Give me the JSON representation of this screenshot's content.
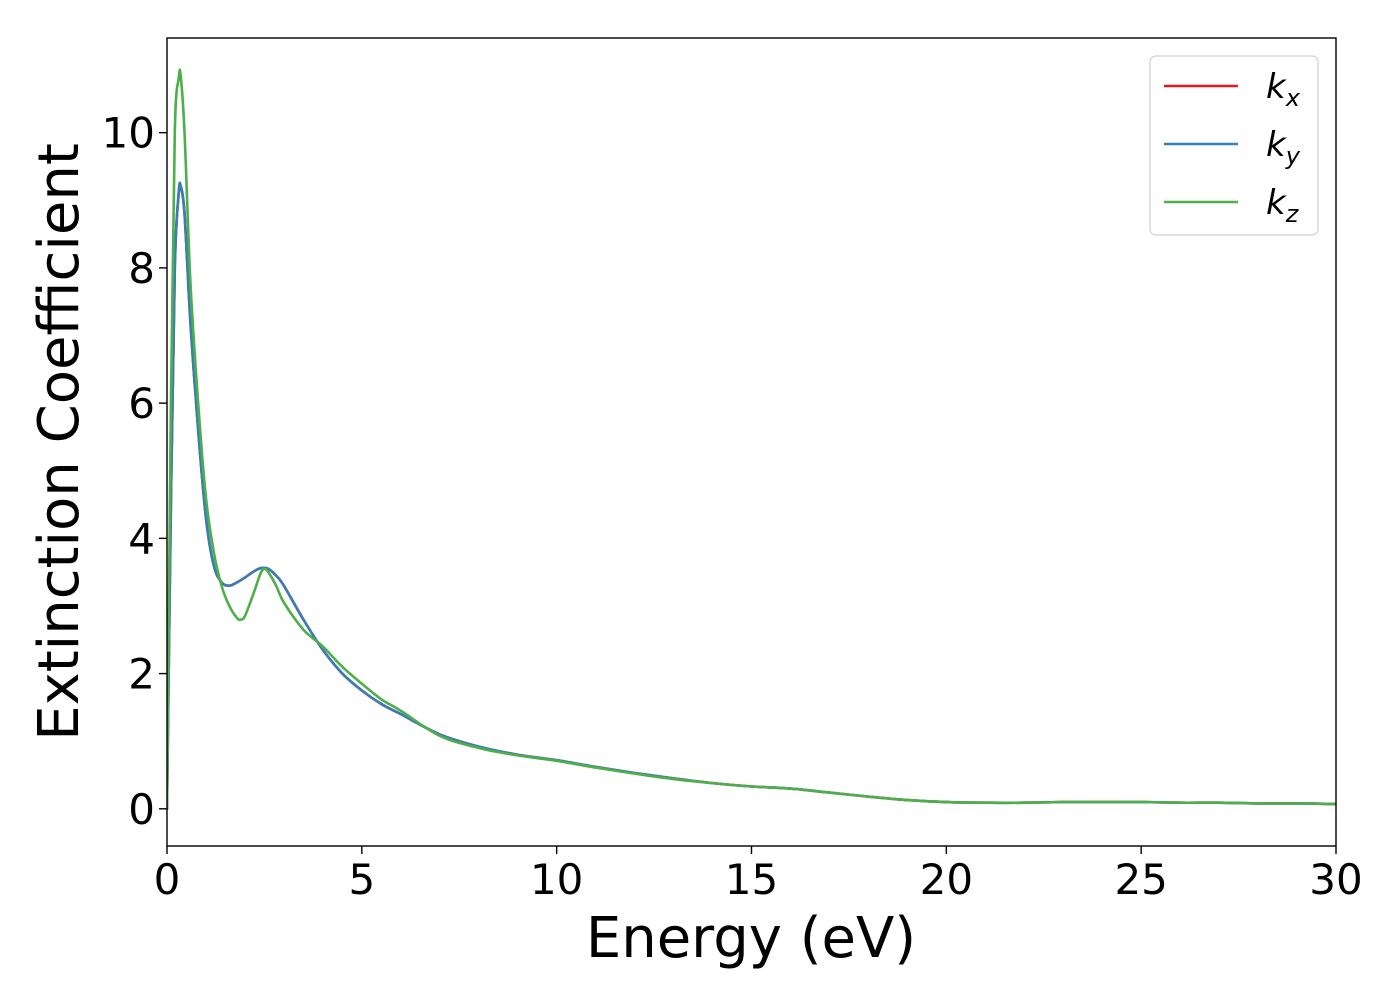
{
  "chart_data": {
    "type": "line",
    "title": "",
    "xlabel": "Energy (eV)",
    "ylabel": "Extinction Coefficient",
    "xlim": [
      0,
      30
    ],
    "ylim": [
      -0.55,
      11.4
    ],
    "xticks": [
      0,
      5,
      10,
      15,
      20,
      25,
      30
    ],
    "yticks": [
      0,
      2,
      4,
      6,
      8,
      10
    ],
    "grid": false,
    "legend_position": "top-right",
    "series": [
      {
        "name": "k_x",
        "legend_base": "k",
        "legend_sub": "x",
        "color": "#e41a1c",
        "x": [
          0,
          0.1,
          0.2,
          0.3,
          0.35,
          0.45,
          0.6,
          0.8,
          1.0,
          1.2,
          1.4,
          1.6,
          1.8,
          2.0,
          2.2,
          2.4,
          2.6,
          2.8,
          3.0,
          3.5,
          4.0,
          4.5,
          5.0,
          5.5,
          6.0,
          7.0,
          8.0,
          9.0,
          10.0,
          11.0,
          12.0,
          13.0,
          14.0,
          15.0,
          16.0,
          17.0,
          18.0,
          19.0,
          20.0,
          21.0,
          22.0,
          23.0,
          24.0,
          25.0,
          26.0,
          27.0,
          28.0,
          29.0,
          30.0
        ],
        "y": [
          0,
          4.5,
          8.0,
          9.1,
          9.2,
          8.8,
          7.2,
          5.6,
          4.3,
          3.6,
          3.35,
          3.3,
          3.35,
          3.42,
          3.5,
          3.56,
          3.55,
          3.45,
          3.3,
          2.8,
          2.35,
          2.0,
          1.75,
          1.55,
          1.4,
          1.1,
          0.92,
          0.8,
          0.72,
          0.62,
          0.53,
          0.45,
          0.38,
          0.33,
          0.3,
          0.24,
          0.18,
          0.13,
          0.1,
          0.09,
          0.09,
          0.1,
          0.1,
          0.1,
          0.09,
          0.09,
          0.08,
          0.08,
          0.07
        ]
      },
      {
        "name": "k_y",
        "legend_base": "k",
        "legend_sub": "y",
        "color": "#377eb8",
        "x": [
          0,
          0.1,
          0.2,
          0.3,
          0.35,
          0.45,
          0.6,
          0.8,
          1.0,
          1.2,
          1.4,
          1.6,
          1.8,
          2.0,
          2.2,
          2.4,
          2.6,
          2.8,
          3.0,
          3.5,
          4.0,
          4.5,
          5.0,
          5.5,
          6.0,
          7.0,
          8.0,
          9.0,
          10.0,
          11.0,
          12.0,
          13.0,
          14.0,
          15.0,
          16.0,
          17.0,
          18.0,
          19.0,
          20.0,
          21.0,
          22.0,
          23.0,
          24.0,
          25.0,
          26.0,
          27.0,
          28.0,
          29.0,
          30.0
        ],
        "y": [
          0,
          4.5,
          8.0,
          9.1,
          9.22,
          8.8,
          7.2,
          5.6,
          4.3,
          3.6,
          3.35,
          3.3,
          3.35,
          3.42,
          3.5,
          3.56,
          3.55,
          3.45,
          3.3,
          2.8,
          2.35,
          2.0,
          1.75,
          1.55,
          1.4,
          1.1,
          0.92,
          0.8,
          0.72,
          0.62,
          0.53,
          0.45,
          0.38,
          0.33,
          0.3,
          0.24,
          0.18,
          0.13,
          0.1,
          0.09,
          0.09,
          0.1,
          0.1,
          0.1,
          0.09,
          0.09,
          0.08,
          0.08,
          0.07
        ]
      },
      {
        "name": "k_z",
        "legend_base": "k",
        "legend_sub": "z",
        "color": "#4daf4a",
        "x": [
          0,
          0.1,
          0.2,
          0.3,
          0.35,
          0.45,
          0.6,
          0.8,
          1.0,
          1.2,
          1.4,
          1.6,
          1.8,
          1.9,
          2.0,
          2.2,
          2.4,
          2.5,
          2.6,
          2.8,
          3.0,
          3.5,
          4.0,
          4.5,
          5.0,
          5.5,
          6.0,
          7.0,
          8.0,
          9.0,
          10.0,
          11.0,
          12.0,
          13.0,
          14.0,
          15.0,
          16.0,
          17.0,
          18.0,
          19.0,
          20.0,
          21.0,
          22.0,
          23.0,
          24.0,
          25.0,
          26.0,
          27.0,
          28.0,
          29.0,
          30.0
        ],
        "y": [
          0,
          6.0,
          10.0,
          10.8,
          10.85,
          10.0,
          7.8,
          6.0,
          4.6,
          3.8,
          3.3,
          3.0,
          2.82,
          2.8,
          2.85,
          3.15,
          3.48,
          3.55,
          3.5,
          3.3,
          3.05,
          2.65,
          2.4,
          2.1,
          1.85,
          1.62,
          1.45,
          1.08,
          0.9,
          0.79,
          0.71,
          0.61,
          0.52,
          0.44,
          0.38,
          0.33,
          0.3,
          0.24,
          0.18,
          0.13,
          0.1,
          0.09,
          0.09,
          0.1,
          0.1,
          0.1,
          0.09,
          0.09,
          0.08,
          0.08,
          0.07
        ]
      }
    ]
  }
}
